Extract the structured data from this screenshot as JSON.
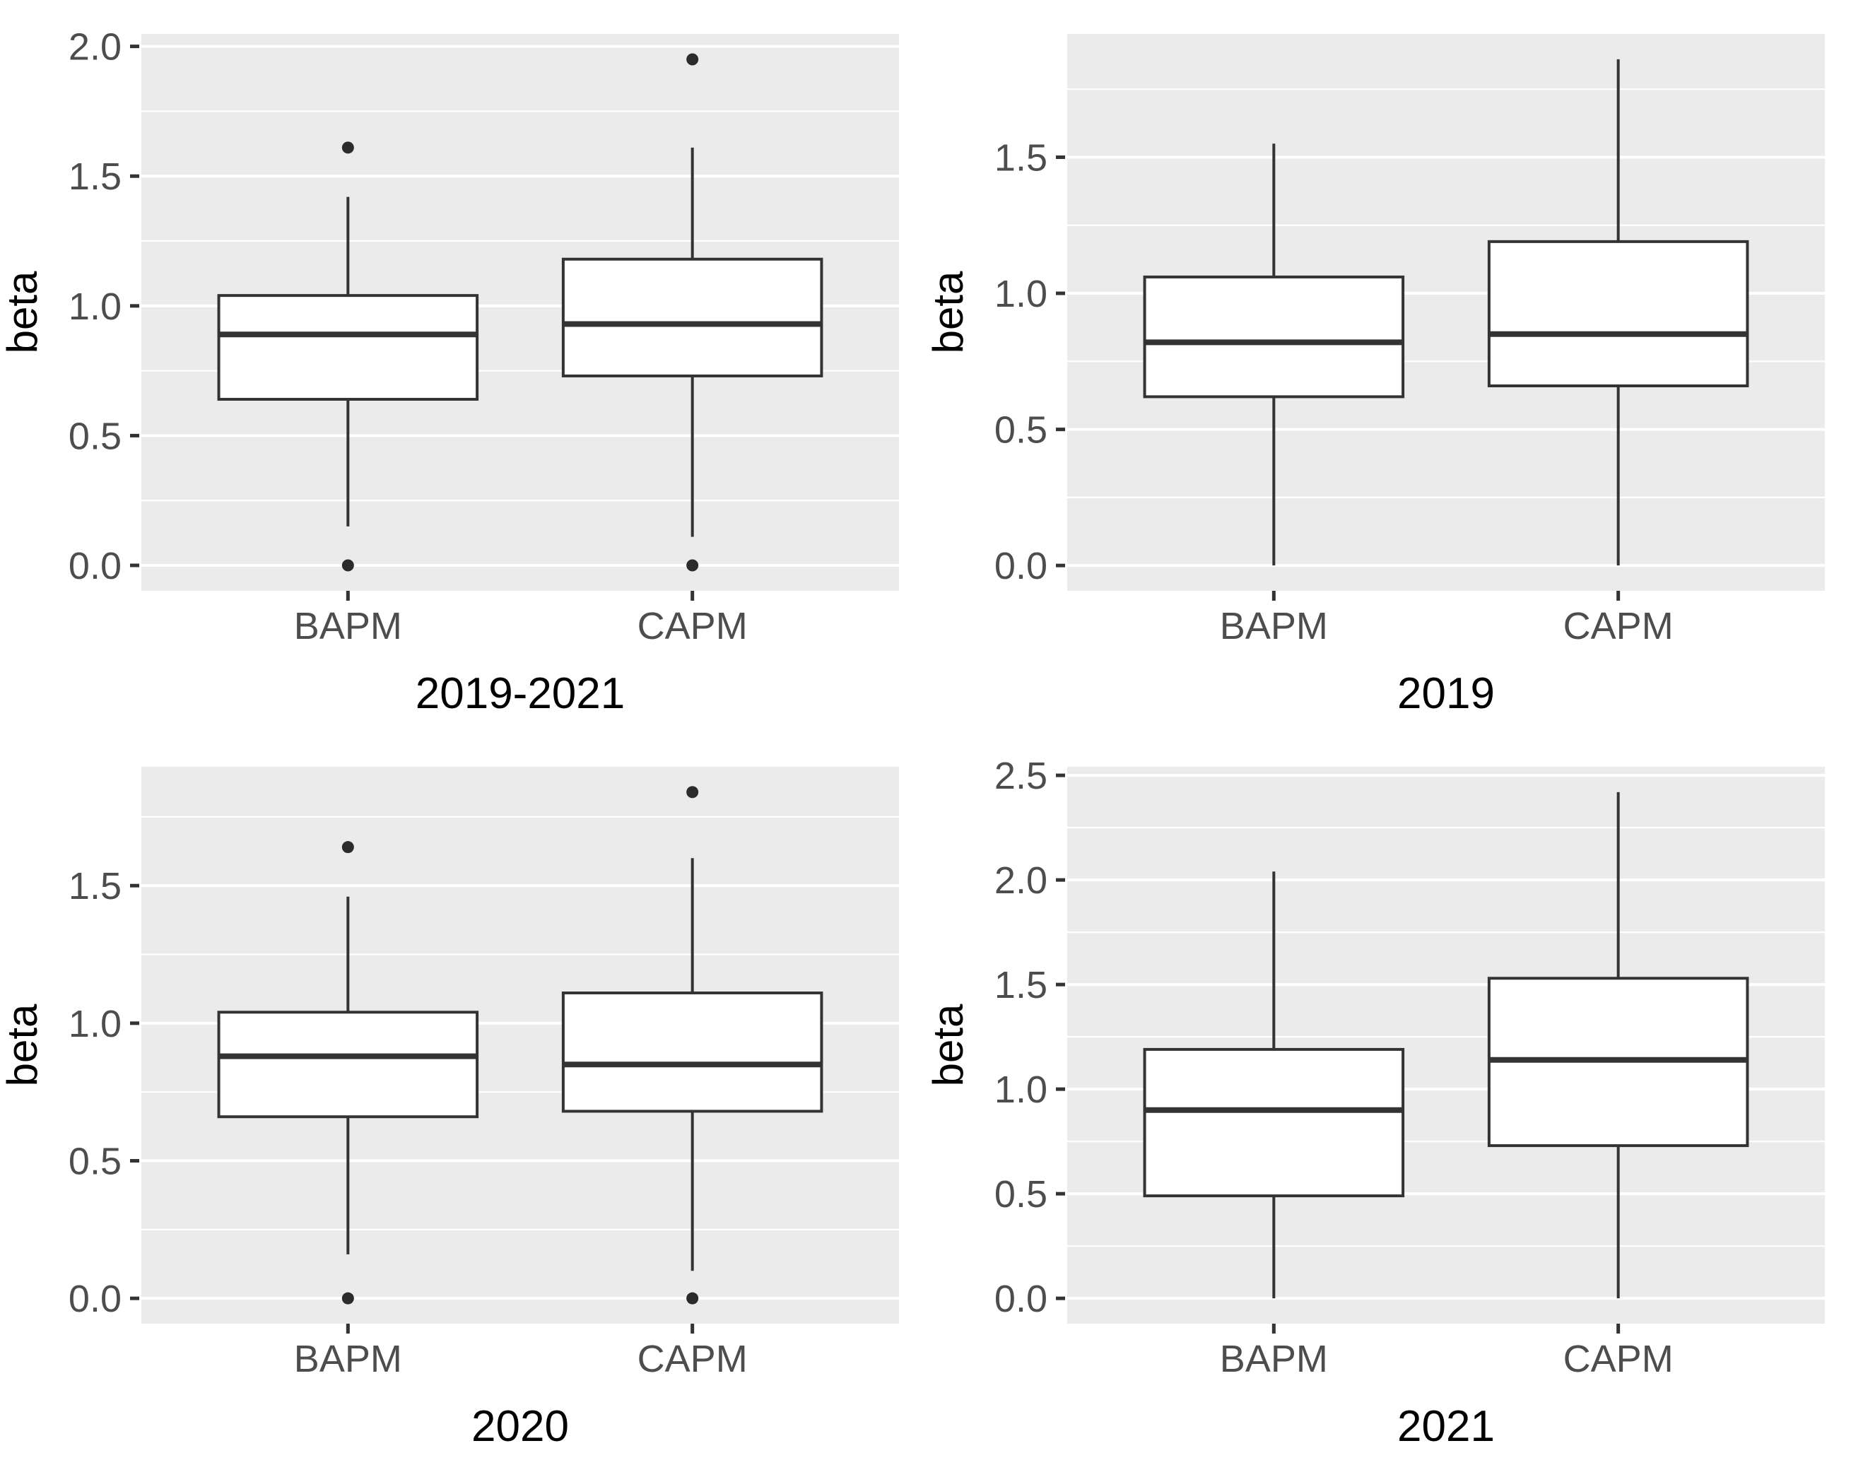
{
  "figure": {
    "description": "2x2 grid of boxplot panels comparing BAPM and CAPM beta estimates per period",
    "background": "#FFFFFF"
  },
  "style": {
    "panel_bg": "#EBEBEB",
    "grid_color": "#FFFFFF",
    "box_stroke": "#333333",
    "box_fill": "#FFFFFF",
    "median_color": "#333333",
    "outlier_color": "#2B2B2B",
    "tick_mark_color": "#333333",
    "tick_text_color": "#4D4D4D",
    "title_text_color": "#000000"
  },
  "chart_data": [
    {
      "type": "boxplot",
      "title": "2019-2021",
      "ylabel": "beta",
      "categories": [
        "BAPM",
        "CAPM"
      ],
      "yticks": [
        0.0,
        0.5,
        1.0,
        1.5,
        2.0
      ],
      "ytick_labels": [
        "0.0",
        "0.5",
        "1.0",
        "1.5",
        "2.0"
      ],
      "minor_ticks": [
        0.25,
        0.75,
        1.25,
        1.75
      ],
      "ylim": [
        -0.098,
        2.048
      ],
      "grid": true,
      "legend": "none",
      "series": [
        {
          "name": "BAPM",
          "whisker_low": 0.15,
          "q1": 0.64,
          "median": 0.89,
          "q3": 1.04,
          "whisker_high": 1.42,
          "outliers": [
            1.61,
            0.0
          ]
        },
        {
          "name": "CAPM",
          "whisker_low": 0.11,
          "q1": 0.73,
          "median": 0.93,
          "q3": 1.18,
          "whisker_high": 1.61,
          "outliers": [
            1.95,
            0.0
          ]
        }
      ]
    },
    {
      "type": "boxplot",
      "title": "2019",
      "ylabel": "beta",
      "categories": [
        "BAPM",
        "CAPM"
      ],
      "yticks": [
        0.0,
        0.5,
        1.0,
        1.5
      ],
      "ytick_labels": [
        "0.0",
        "0.5",
        "1.0",
        "1.5"
      ],
      "minor_ticks": [
        0.25,
        0.75,
        1.25,
        1.75
      ],
      "ylim": [
        -0.093,
        1.953
      ],
      "grid": true,
      "legend": "none",
      "series": [
        {
          "name": "BAPM",
          "whisker_low": 0.0,
          "q1": 0.62,
          "median": 0.82,
          "q3": 1.06,
          "whisker_high": 1.55,
          "outliers": []
        },
        {
          "name": "CAPM",
          "whisker_low": 0.0,
          "q1": 0.66,
          "median": 0.85,
          "q3": 1.19,
          "whisker_high": 1.86,
          "outliers": []
        }
      ]
    },
    {
      "type": "boxplot",
      "title": "2020",
      "ylabel": "beta",
      "categories": [
        "BAPM",
        "CAPM"
      ],
      "yticks": [
        0.0,
        0.5,
        1.0,
        1.5
      ],
      "ytick_labels": [
        "0.0",
        "0.5",
        "1.0",
        "1.5"
      ],
      "minor_ticks": [
        0.25,
        0.75,
        1.25,
        1.75
      ],
      "ylim": [
        -0.092,
        1.932
      ],
      "grid": true,
      "legend": "none",
      "series": [
        {
          "name": "BAPM",
          "whisker_low": 0.16,
          "q1": 0.66,
          "median": 0.88,
          "q3": 1.04,
          "whisker_high": 1.46,
          "outliers": [
            1.64,
            0.0
          ]
        },
        {
          "name": "CAPM",
          "whisker_low": 0.1,
          "q1": 0.68,
          "median": 0.85,
          "q3": 1.11,
          "whisker_high": 1.6,
          "outliers": [
            1.84,
            0.0
          ]
        }
      ]
    },
    {
      "type": "boxplot",
      "title": "2021",
      "ylabel": "beta",
      "categories": [
        "BAPM",
        "CAPM"
      ],
      "yticks": [
        0.0,
        0.5,
        1.0,
        1.5,
        2.0,
        2.5
      ],
      "ytick_labels": [
        "0.0",
        "0.5",
        "1.0",
        "1.5",
        "2.0",
        "2.5"
      ],
      "minor_ticks": [
        0.25,
        0.75,
        1.25,
        1.75,
        2.25
      ],
      "ylim": [
        -0.121,
        2.541
      ],
      "grid": true,
      "legend": "none",
      "series": [
        {
          "name": "BAPM",
          "whisker_low": 0.0,
          "q1": 0.49,
          "median": 0.9,
          "q3": 1.19,
          "whisker_high": 2.04,
          "outliers": []
        },
        {
          "name": "CAPM",
          "whisker_low": 0.0,
          "q1": 0.73,
          "median": 1.14,
          "q3": 1.53,
          "whisker_high": 2.42,
          "outliers": []
        }
      ]
    }
  ]
}
